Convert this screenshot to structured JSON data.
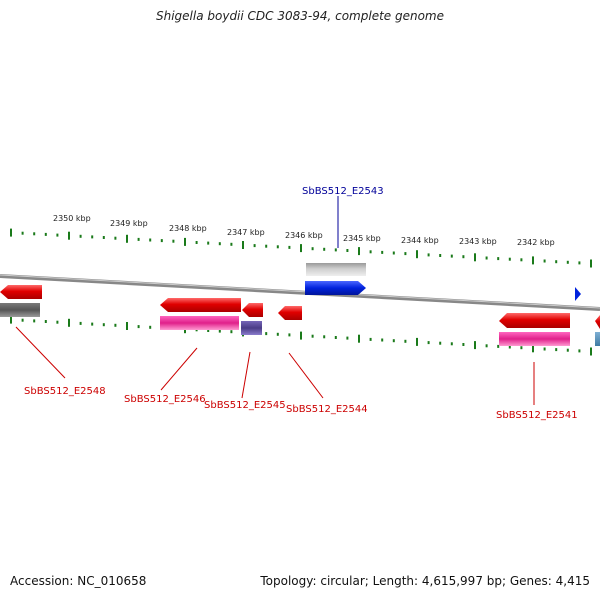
{
  "title": "Shigella boydii CDC 3083-94, complete genome",
  "footer": {
    "accession": "Accession: NC_010658",
    "summary": "Topology: circular; Length: 4,615,997 bp; Genes: 4,415"
  },
  "scale": {
    "labels": [
      "2350 kbp",
      "2349 kbp",
      "2348 kbp",
      "2347 kbp",
      "2346 kbp",
      "2345 kbp",
      "2344 kbp",
      "2343 kbp",
      "2342 kbp"
    ]
  },
  "genes": [
    {
      "name": "SbBS512_E2543",
      "color": "#000099",
      "feature_color": "#0022dd"
    },
    {
      "name": "SbBS512_E2548",
      "color": "#cc0000"
    },
    {
      "name": "SbBS512_E2546",
      "color": "#cc0000"
    },
    {
      "name": "SbBS512_E2545",
      "color": "#cc0000"
    },
    {
      "name": "SbBS512_E2544",
      "color": "#cc0000"
    },
    {
      "name": "SbBS512_E2541",
      "color": "#cc0000"
    }
  ],
  "colors": {
    "tick": "#1a7a1a",
    "backbone": "#888888",
    "gene_red": "#e00000",
    "cds_pink": "#e0208a",
    "cds_purple": "#4a3c86",
    "gene_gray": "#bbbbbb",
    "dark_gray": "#666666",
    "blue_gene": "#0022dd",
    "steel_blue": "#4c88b0"
  }
}
